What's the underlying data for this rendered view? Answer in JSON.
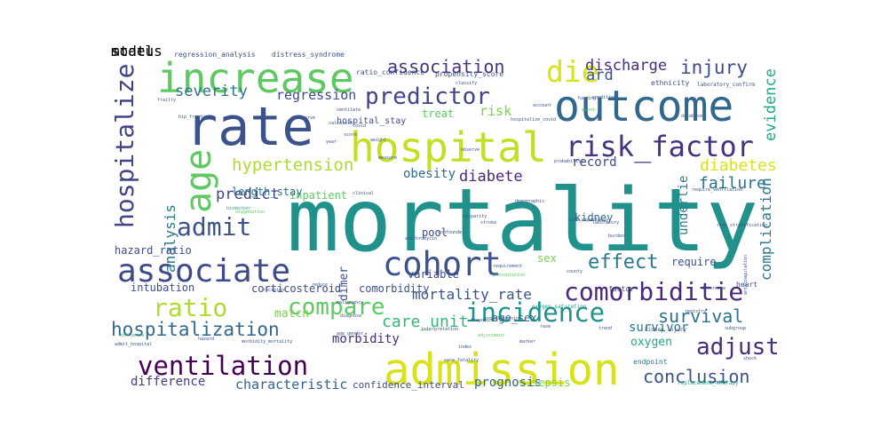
{
  "cloud": {
    "words": [
      {
        "text": "mortality",
        "color": "#21918c"
      },
      {
        "text": "outcome",
        "color": "#30678d"
      },
      {
        "text": "rate",
        "color": "#3b528b"
      },
      {
        "text": "hospital",
        "color": "#c2df23"
      },
      {
        "text": "admission",
        "color": "#d8e219"
      },
      {
        "text": "increase",
        "color": "#5ec962"
      },
      {
        "text": "risk_factor",
        "color": "#46337e"
      },
      {
        "text": "cohort",
        "color": "#3b528b"
      },
      {
        "text": "associate",
        "color": "#3e4a89"
      },
      {
        "text": "ventilation",
        "color": "#440154"
      },
      {
        "text": "comorbiditie",
        "color": "#482878"
      },
      {
        "text": "predictor",
        "color": "#414487"
      },
      {
        "text": "die",
        "color": "#d8e219"
      },
      {
        "text": "age",
        "color": "#5ec962"
      },
      {
        "text": "hospitalize",
        "color": "#414487"
      },
      {
        "text": "incidence",
        "color": "#21918c"
      },
      {
        "text": "compare",
        "color": "#5ec962"
      },
      {
        "text": "hospitalization",
        "color": "#31688e"
      },
      {
        "text": "adjust",
        "color": "#472d7b"
      },
      {
        "text": "ratio",
        "color": "#addc30"
      },
      {
        "text": "admit",
        "color": "#3b528b"
      },
      {
        "text": "association",
        "color": "#46337e"
      },
      {
        "text": "injury",
        "color": "#3e4a89"
      },
      {
        "text": "survival",
        "color": "#2c728e"
      },
      {
        "text": "effect",
        "color": "#2a788e"
      },
      {
        "text": "conclusion",
        "color": "#3b528b"
      },
      {
        "text": "hypertension",
        "color": "#addc30"
      },
      {
        "text": "diabetes",
        "color": "#d8e219"
      },
      {
        "text": "discharge",
        "color": "#472d7b"
      },
      {
        "text": "severity",
        "color": "#2c728e"
      },
      {
        "text": "regression",
        "color": "#3e4a89"
      },
      {
        "text": "predict",
        "color": "#414487"
      },
      {
        "text": "diabete",
        "color": "#482878"
      },
      {
        "text": "obesity",
        "color": "#31688e"
      },
      {
        "text": "record",
        "color": "#3e4a89"
      },
      {
        "text": "failure",
        "color": "#2c728e"
      },
      {
        "text": "evidence",
        "color": "#22a884"
      },
      {
        "text": "complication",
        "color": "#2a788e"
      },
      {
        "text": "analysis",
        "color": "#2a788e"
      },
      {
        "text": "ard",
        "color": "#3b528b"
      },
      {
        "text": "risk",
        "color": "#7ad151"
      },
      {
        "text": "characteristic",
        "color": "#33638d"
      },
      {
        "text": "difference",
        "color": "#433e85"
      },
      {
        "text": "morbidity",
        "color": "#472d7b"
      },
      {
        "text": "care_unit",
        "color": "#35b779"
      },
      {
        "text": "mortality_rate",
        "color": "#3b528b"
      },
      {
        "text": "survivor",
        "color": "#2a788e"
      },
      {
        "text": "prognosis",
        "color": "#33638d"
      },
      {
        "text": "sepsis",
        "color": "#7ad151"
      },
      {
        "text": "oxygen",
        "color": "#22a884"
      },
      {
        "text": "age_sex",
        "color": "#306a8e"
      },
      {
        "text": "comorbidity",
        "color": "#3b528b"
      },
      {
        "text": "variable",
        "color": "#3e4a89"
      },
      {
        "text": "pool",
        "color": "#3e4a89"
      },
      {
        "text": "kidney",
        "color": "#31688e"
      },
      {
        "text": "hazard_ratio",
        "color": "#3e4a89"
      },
      {
        "text": "intubation",
        "color": "#3b528b"
      },
      {
        "text": "corticosteroid",
        "color": "#3e4a89"
      },
      {
        "text": "confidence_interval",
        "color": "#3e4a89"
      },
      {
        "text": "inpatient",
        "color": "#5ec962"
      },
      {
        "text": "length_stay",
        "color": "#2c728e"
      },
      {
        "text": "hospital_stay",
        "color": "#3e4a89"
      },
      {
        "text": "treat",
        "color": "#5ec962"
      },
      {
        "text": "heart_failure",
        "color": "#3e4a89"
      },
      {
        "text": "underlie",
        "color": "#2a788e"
      },
      {
        "text": "require",
        "color": "#3b528b"
      },
      {
        "text": "match",
        "color": "#7ad151"
      },
      {
        "text": "sex",
        "color": "#7ad151"
      },
      {
        "text": "dimer",
        "color": "#3b528b"
      },
      {
        "text": "regression_analysis",
        "color": "#3b528b"
      },
      {
        "text": "distress_syndrome",
        "color": "#3b528b"
      },
      {
        "text": "ratio_confidence",
        "color": "#3b528b"
      },
      {
        "text": "propensity_score",
        "color": "#3b528b"
      },
      {
        "text": "ethnicity",
        "color": "#3b528b"
      },
      {
        "text": "laboratory_confirm",
        "color": "#3b528b"
      },
      {
        "text": "heart",
        "color": "#3e4a89"
      },
      {
        "text": "factor",
        "color": "#3e4a89"
      },
      {
        "text": "endpoint",
        "color": "#2a788e"
      },
      {
        "text": "kidney_injury",
        "color": "#3b528b"
      },
      {
        "text": "admit_hospital",
        "color": "#3b528b"
      },
      {
        "text": "adjustment",
        "color": "#5ec962"
      },
      {
        "text": "influenza",
        "color": "#35b779"
      },
      {
        "text": "hip_fracture",
        "color": "#3b528b"
      },
      {
        "text": "frailty",
        "color": "#3b528b"
      },
      {
        "text": "ventilate",
        "color": "#3b528b"
      },
      {
        "text": "calculate",
        "color": "#3b528b"
      },
      {
        "text": "year",
        "color": "#3b528b"
      },
      {
        "text": "biomarker",
        "color": "#22a884"
      },
      {
        "text": "oxygenation",
        "color": "#5ec962"
      },
      {
        "text": "malignancy",
        "color": "#3b528b"
      },
      {
        "text": "diagnose",
        "color": "#3b528b"
      },
      {
        "text": "age_gender",
        "color": "#3b528b"
      },
      {
        "text": "interpretation",
        "color": "#3b528b"
      },
      {
        "text": "registry",
        "color": "#3b528b"
      },
      {
        "text": "subgroup",
        "color": "#3b528b"
      },
      {
        "text": "shock",
        "color": "#3b528b"
      },
      {
        "text": "benefit",
        "color": "#3b528b"
      },
      {
        "text": "replacement_therapy",
        "color": "#22a884"
      },
      {
        "text": "oxygen_saturation",
        "color": "#22a884"
      },
      {
        "text": "troponin",
        "color": "#3b528b"
      },
      {
        "text": "procalcitonin",
        "color": "#3b528b"
      },
      {
        "text": "presentation",
        "color": "#5ec962"
      },
      {
        "text": "confounder",
        "color": "#3b528b"
      },
      {
        "text": "burden",
        "color": "#3b528b"
      },
      {
        "text": "county",
        "color": "#3b528b"
      },
      {
        "text": "life_expectancy",
        "color": "#3b528b"
      },
      {
        "text": "laboratory",
        "color": "#3b528b"
      },
      {
        "text": "risk_stratification",
        "color": "#3b528b"
      },
      {
        "text": "determine",
        "color": "#3b528b"
      },
      {
        "text": "anticoagulation",
        "color": "#3b528b"
      },
      {
        "text": "requirement",
        "color": "#3b528b"
      },
      {
        "text": "probability",
        "color": "#3b528b"
      },
      {
        "text": "demographic",
        "color": "#3b528b"
      },
      {
        "text": "disparity",
        "color": "#3b528b"
      },
      {
        "text": "stroke",
        "color": "#3b528b"
      },
      {
        "text": "observe",
        "color": "#3b528b"
      },
      {
        "text": "funding",
        "color": "#3b528b"
      },
      {
        "text": "event",
        "color": "#5ec962"
      },
      {
        "text": "condition",
        "color": "#3b528b"
      },
      {
        "text": "database",
        "color": "#3b528b"
      },
      {
        "text": "require_ventilation",
        "color": "#3b528b"
      },
      {
        "text": "hospitalize_covid",
        "color": "#3b528b"
      },
      {
        "text": "classify",
        "color": "#3b528b"
      },
      {
        "text": "account",
        "color": "#3b528b"
      },
      {
        "text": "reduce",
        "color": "#3b528b"
      },
      {
        "text": "recipient",
        "color": "#3b528b"
      },
      {
        "text": "marker",
        "color": "#3b528b"
      },
      {
        "text": "rase",
        "color": "#3b528b"
      },
      {
        "text": "trend",
        "color": "#3b528b"
      },
      {
        "text": "hazard",
        "color": "#3b528b"
      },
      {
        "text": "morbidity_mortality",
        "color": "#3b528b"
      },
      {
        "text": "azithromycin",
        "color": "#3b528b"
      },
      {
        "text": "case_fatality",
        "color": "#3b528b"
      },
      {
        "text": "index",
        "color": "#3b528b"
      },
      {
        "text": "curve",
        "color": "#3b528b"
      },
      {
        "text": "covid",
        "color": "#3b528b"
      },
      {
        "text": "score",
        "color": "#3b528b"
      },
      {
        "text": "weight",
        "color": "#3b528b"
      },
      {
        "text": "measure",
        "color": "#3b528b"
      },
      {
        "text": "clinical",
        "color": "#3b528b"
      },
      {
        "text": "status",
        "color": "#3b528b"
      },
      {
        "text": "model",
        "color": "#3b528b"
      }
    ]
  }
}
